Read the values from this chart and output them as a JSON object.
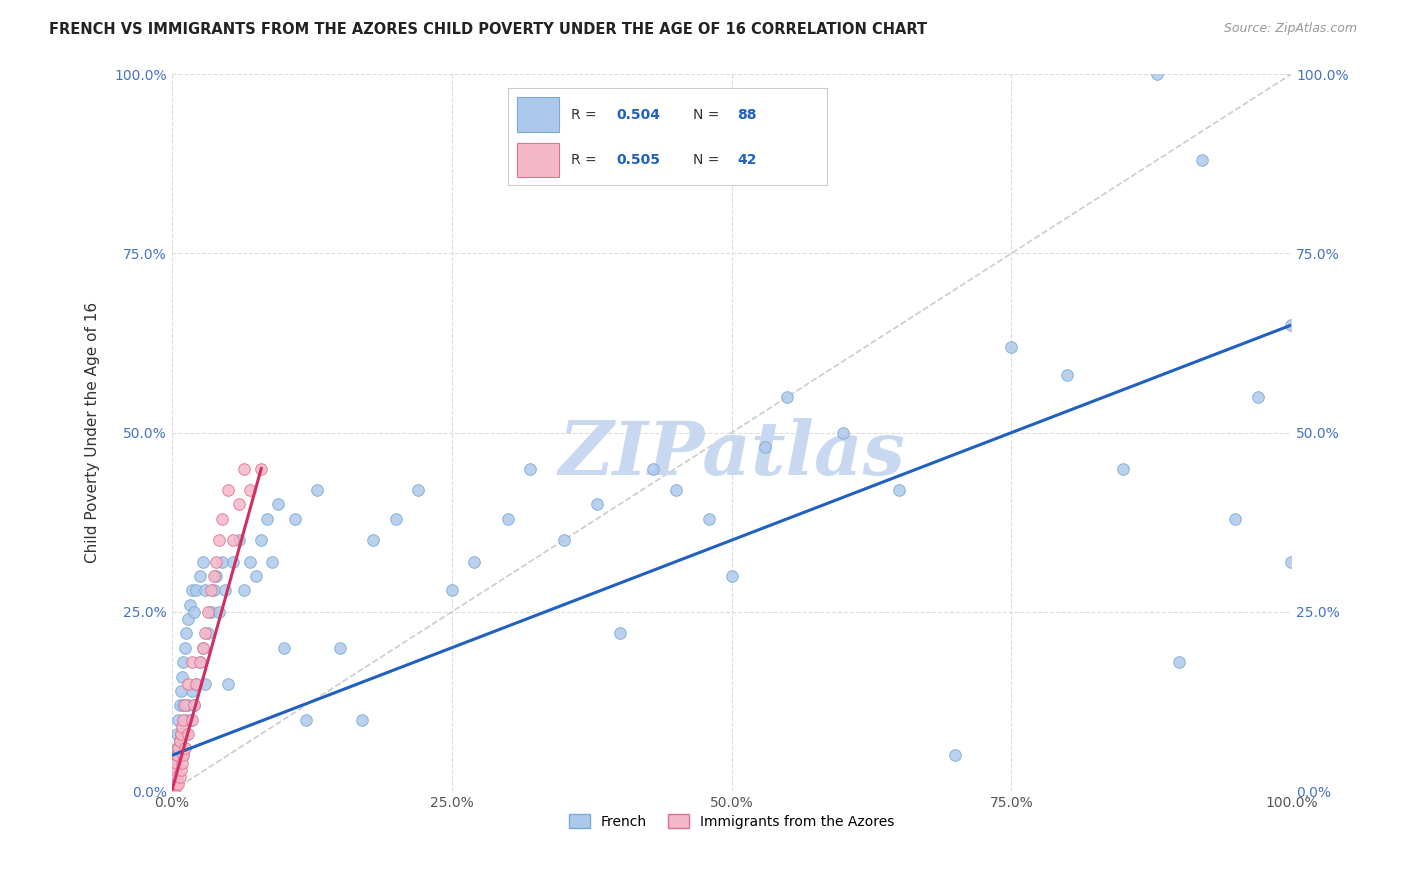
{
  "title": "FRENCH VS IMMIGRANTS FROM THE AZORES CHILD POVERTY UNDER THE AGE OF 16 CORRELATION CHART",
  "source": "Source: ZipAtlas.com",
  "ylabel": "Child Poverty Under the Age of 16",
  "xlim": [
    0,
    1
  ],
  "ylim": [
    0,
    1
  ],
  "xticks": [
    0,
    0.25,
    0.5,
    0.75,
    1.0
  ],
  "yticks": [
    0,
    0.25,
    0.5,
    0.75,
    1.0
  ],
  "xticklabels": [
    "0.0%",
    "25.0%",
    "50.0%",
    "75.0%",
    "100.0%"
  ],
  "yticklabels": [
    "0.0%",
    "25.0%",
    "50.0%",
    "75.0%",
    "100.0%"
  ],
  "french_color": "#adc8ed",
  "french_edge_color": "#7aaad0",
  "azores_color": "#f5b8c8",
  "azores_edge_color": "#e07090",
  "french_R": 0.504,
  "french_N": 88,
  "azores_R": 0.505,
  "azores_N": 42,
  "french_line_color": "#2060c0",
  "azores_line_color": "#d03060",
  "diagonal_color": "#cccccc",
  "background_color": "#ffffff",
  "grid_color": "#dddddd",
  "watermark_color": "#c8d8f0",
  "tick_color": "#4472c4",
  "french_x": [
    0.002,
    0.003,
    0.004,
    0.005,
    0.005,
    0.006,
    0.006,
    0.007,
    0.007,
    0.008,
    0.008,
    0.009,
    0.009,
    0.01,
    0.01,
    0.01,
    0.012,
    0.012,
    0.013,
    0.013,
    0.015,
    0.015,
    0.016,
    0.016,
    0.018,
    0.018,
    0.02,
    0.02,
    0.022,
    0.022,
    0.025,
    0.025,
    0.028,
    0.028,
    0.03,
    0.03,
    0.032,
    0.035,
    0.038,
    0.04,
    0.042,
    0.045,
    0.048,
    0.05,
    0.055,
    0.06,
    0.065,
    0.07,
    0.075,
    0.08,
    0.085,
    0.09,
    0.095,
    0.1,
    0.11,
    0.12,
    0.13,
    0.15,
    0.17,
    0.18,
    0.2,
    0.22,
    0.25,
    0.27,
    0.3,
    0.32,
    0.35,
    0.38,
    0.4,
    0.43,
    0.45,
    0.48,
    0.5,
    0.53,
    0.55,
    0.6,
    0.65,
    0.7,
    0.75,
    0.8,
    0.85,
    0.88,
    0.9,
    0.92,
    0.95,
    0.97,
    1.0,
    1.0
  ],
  "french_y": [
    0.02,
    0.04,
    0.03,
    0.06,
    0.08,
    0.05,
    0.1,
    0.07,
    0.12,
    0.08,
    0.14,
    0.06,
    0.16,
    0.05,
    0.12,
    0.18,
    0.1,
    0.2,
    0.08,
    0.22,
    0.12,
    0.24,
    0.1,
    0.26,
    0.14,
    0.28,
    0.12,
    0.25,
    0.15,
    0.28,
    0.18,
    0.3,
    0.2,
    0.32,
    0.15,
    0.28,
    0.22,
    0.25,
    0.28,
    0.3,
    0.25,
    0.32,
    0.28,
    0.15,
    0.32,
    0.35,
    0.28,
    0.32,
    0.3,
    0.35,
    0.38,
    0.32,
    0.4,
    0.2,
    0.38,
    0.1,
    0.42,
    0.2,
    0.1,
    0.35,
    0.38,
    0.42,
    0.28,
    0.32,
    0.38,
    0.45,
    0.35,
    0.4,
    0.22,
    0.45,
    0.42,
    0.38,
    0.3,
    0.48,
    0.55,
    0.5,
    0.42,
    0.05,
    0.62,
    0.58,
    0.45,
    1.0,
    0.18,
    0.88,
    0.38,
    0.55,
    0.65,
    0.32
  ],
  "azores_x": [
    0.001,
    0.002,
    0.002,
    0.003,
    0.003,
    0.004,
    0.004,
    0.005,
    0.005,
    0.006,
    0.006,
    0.007,
    0.007,
    0.008,
    0.008,
    0.009,
    0.009,
    0.01,
    0.01,
    0.012,
    0.012,
    0.015,
    0.015,
    0.018,
    0.018,
    0.02,
    0.022,
    0.025,
    0.028,
    0.03,
    0.032,
    0.035,
    0.038,
    0.04,
    0.042,
    0.045,
    0.05,
    0.055,
    0.06,
    0.065,
    0.07,
    0.08
  ],
  "azores_y": [
    0.005,
    0.01,
    0.02,
    0.005,
    0.03,
    0.01,
    0.04,
    0.02,
    0.05,
    0.01,
    0.06,
    0.02,
    0.07,
    0.03,
    0.08,
    0.04,
    0.09,
    0.05,
    0.1,
    0.06,
    0.12,
    0.08,
    0.15,
    0.1,
    0.18,
    0.12,
    0.15,
    0.18,
    0.2,
    0.22,
    0.25,
    0.28,
    0.3,
    0.32,
    0.35,
    0.38,
    0.42,
    0.35,
    0.4,
    0.45,
    0.42,
    0.45
  ],
  "french_line_x0": 0.0,
  "french_line_y0": 0.05,
  "french_line_x1": 1.0,
  "french_line_y1": 0.65,
  "azores_line_x0": 0.0,
  "azores_line_y0": 0.0,
  "azores_line_x1": 0.08,
  "azores_line_y1": 0.45
}
